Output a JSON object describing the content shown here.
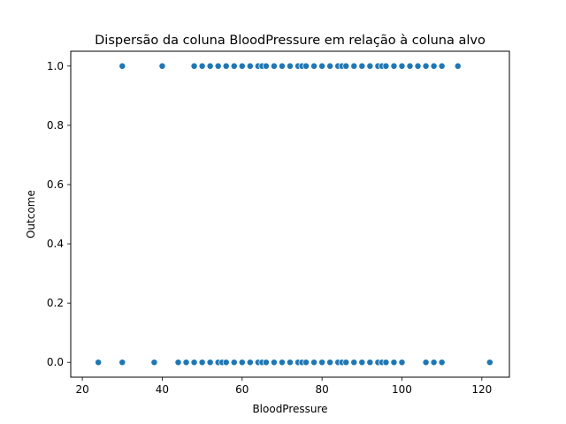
{
  "chart_data": {
    "type": "scatter",
    "title": "Dispersão da coluna BloodPressure em relação à coluna alvo",
    "xlabel": "BloodPressure",
    "ylabel": "Outcome",
    "xlim": [
      17.1,
      126.9
    ],
    "ylim": [
      -0.05,
      1.05
    ],
    "xticks": [
      20,
      40,
      60,
      80,
      100,
      120
    ],
    "xtick_labels": [
      "20",
      "40",
      "60",
      "80",
      "100",
      "120"
    ],
    "yticks": [
      0.0,
      0.2,
      0.4,
      0.6,
      0.8,
      1.0
    ],
    "ytick_labels": [
      "0.0",
      "0.2",
      "0.4",
      "0.6",
      "0.8",
      "1.0"
    ],
    "grid": false,
    "marker_color": "#1f77b4",
    "series": [
      {
        "x": [
          30,
          40,
          48,
          50,
          52,
          54,
          56,
          58,
          60,
          62,
          64,
          65,
          66,
          68,
          70,
          72,
          74,
          75,
          76,
          78,
          80,
          82,
          84,
          85,
          86,
          88,
          90,
          92,
          94,
          95,
          96,
          98,
          100,
          102,
          104,
          106,
          108,
          110,
          114
        ],
        "y": [
          1,
          1,
          1,
          1,
          1,
          1,
          1,
          1,
          1,
          1,
          1,
          1,
          1,
          1,
          1,
          1,
          1,
          1,
          1,
          1,
          1,
          1,
          1,
          1,
          1,
          1,
          1,
          1,
          1,
          1,
          1,
          1,
          1,
          1,
          1,
          1,
          1,
          1,
          1
        ]
      },
      {
        "x": [
          24,
          30,
          38,
          44,
          46,
          48,
          50,
          52,
          54,
          55,
          56,
          58,
          60,
          62,
          64,
          65,
          66,
          68,
          70,
          72,
          74,
          75,
          76,
          78,
          80,
          82,
          84,
          85,
          86,
          88,
          90,
          92,
          94,
          95,
          96,
          98,
          100,
          106,
          108,
          110,
          122
        ],
        "y": [
          0,
          0,
          0,
          0,
          0,
          0,
          0,
          0,
          0,
          0,
          0,
          0,
          0,
          0,
          0,
          0,
          0,
          0,
          0,
          0,
          0,
          0,
          0,
          0,
          0,
          0,
          0,
          0,
          0,
          0,
          0,
          0,
          0,
          0,
          0,
          0,
          0,
          0,
          0,
          0,
          0
        ]
      }
    ]
  }
}
